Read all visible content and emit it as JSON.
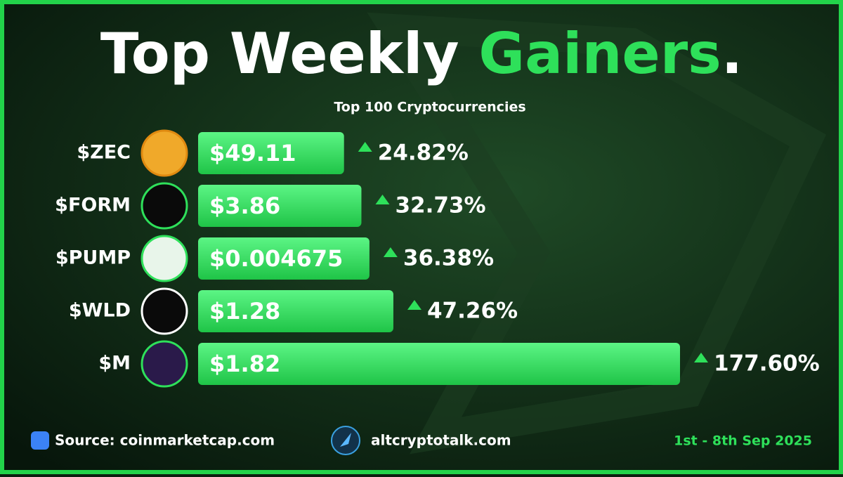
{
  "chart_data": {
    "type": "bar",
    "orientation": "horizontal",
    "title": "Top Weekly",
    "title_highlight": "Gainers",
    "title_end": ".",
    "subtitle": "Top 100 Cryptocurrencies",
    "categories": [
      "$ZEC",
      "$FORM",
      "$PUMP",
      "$WLD",
      "$M"
    ],
    "bar_labels": [
      "$49.11",
      "$3.86",
      "$0.004675",
      "$1.28",
      "$1.82"
    ],
    "values": [
      24.82,
      32.73,
      36.38,
      47.26,
      177.6
    ],
    "value_labels": [
      "24.82%",
      "32.73%",
      "36.38%",
      "47.26%",
      "177.60%"
    ],
    "color": "#2ee05a",
    "source": "Source: coinmarketcap.com",
    "website": "altcryptotalk.com",
    "date_range": "1st - 8th Sep 2025"
  }
}
